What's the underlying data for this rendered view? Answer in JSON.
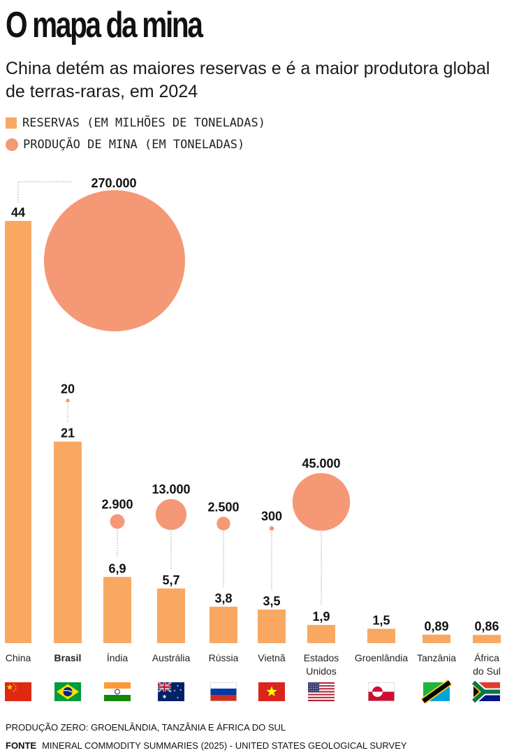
{
  "header": {
    "title": "O mapa da mina",
    "subtitle": "China detém as maiores reservas e é a maior produtora global de terras-raras, em 2024"
  },
  "legend": {
    "reserves": "RESERVAS (EM MILHÕES DE TONELADAS)",
    "production": "PRODUÇÃO DE MINA (EM TONELADAS)"
  },
  "colors": {
    "bar": "#f9a862",
    "circle": "#f59876",
    "leader": "#9a9a9a"
  },
  "chart_data": {
    "type": "bar",
    "categories": [
      "China",
      "Brasil",
      "Índia",
      "Austrália",
      "Rússia",
      "Vietnã",
      "Estados Unidos",
      "Groenlândia",
      "Tanzânia",
      "África do Sul"
    ],
    "highlight": "Brasil",
    "series": [
      {
        "name": "RESERVAS (EM MILHÕES DE TONELADAS)",
        "kind": "bar",
        "values": [
          44,
          21,
          6.9,
          5.7,
          3.8,
          3.5,
          1.9,
          1.5,
          0.89,
          0.86
        ],
        "labels": [
          "44",
          "21",
          "6,9",
          "5,7",
          "3,8",
          "3,5",
          "1,9",
          "1,5",
          "0,89",
          "0,86"
        ]
      },
      {
        "name": "PRODUÇÃO DE MINA (EM TONELADAS)",
        "kind": "bubble",
        "values": [
          270000,
          20,
          2900,
          13000,
          2500,
          300,
          45000,
          0,
          0,
          0
        ],
        "labels": [
          "270.000",
          "20",
          "2.900",
          "13.000",
          "2.500",
          "300",
          "45.000",
          "",
          "",
          ""
        ]
      }
    ],
    "flags": [
      "cn",
      "br",
      "in",
      "au",
      "ru",
      "vn",
      "us",
      "gl",
      "tz",
      "za"
    ]
  },
  "footer": {
    "note": "PRODUÇÃO ZERO: GROENLÂNDIA, TANZÂNIA E ÁFRICA DO SUL",
    "source_label": "FONTE",
    "source": "MINERAL COMMODITY SUMMARIES (2025) - UNITED STATES GEOLOGICAL SURVEY"
  }
}
